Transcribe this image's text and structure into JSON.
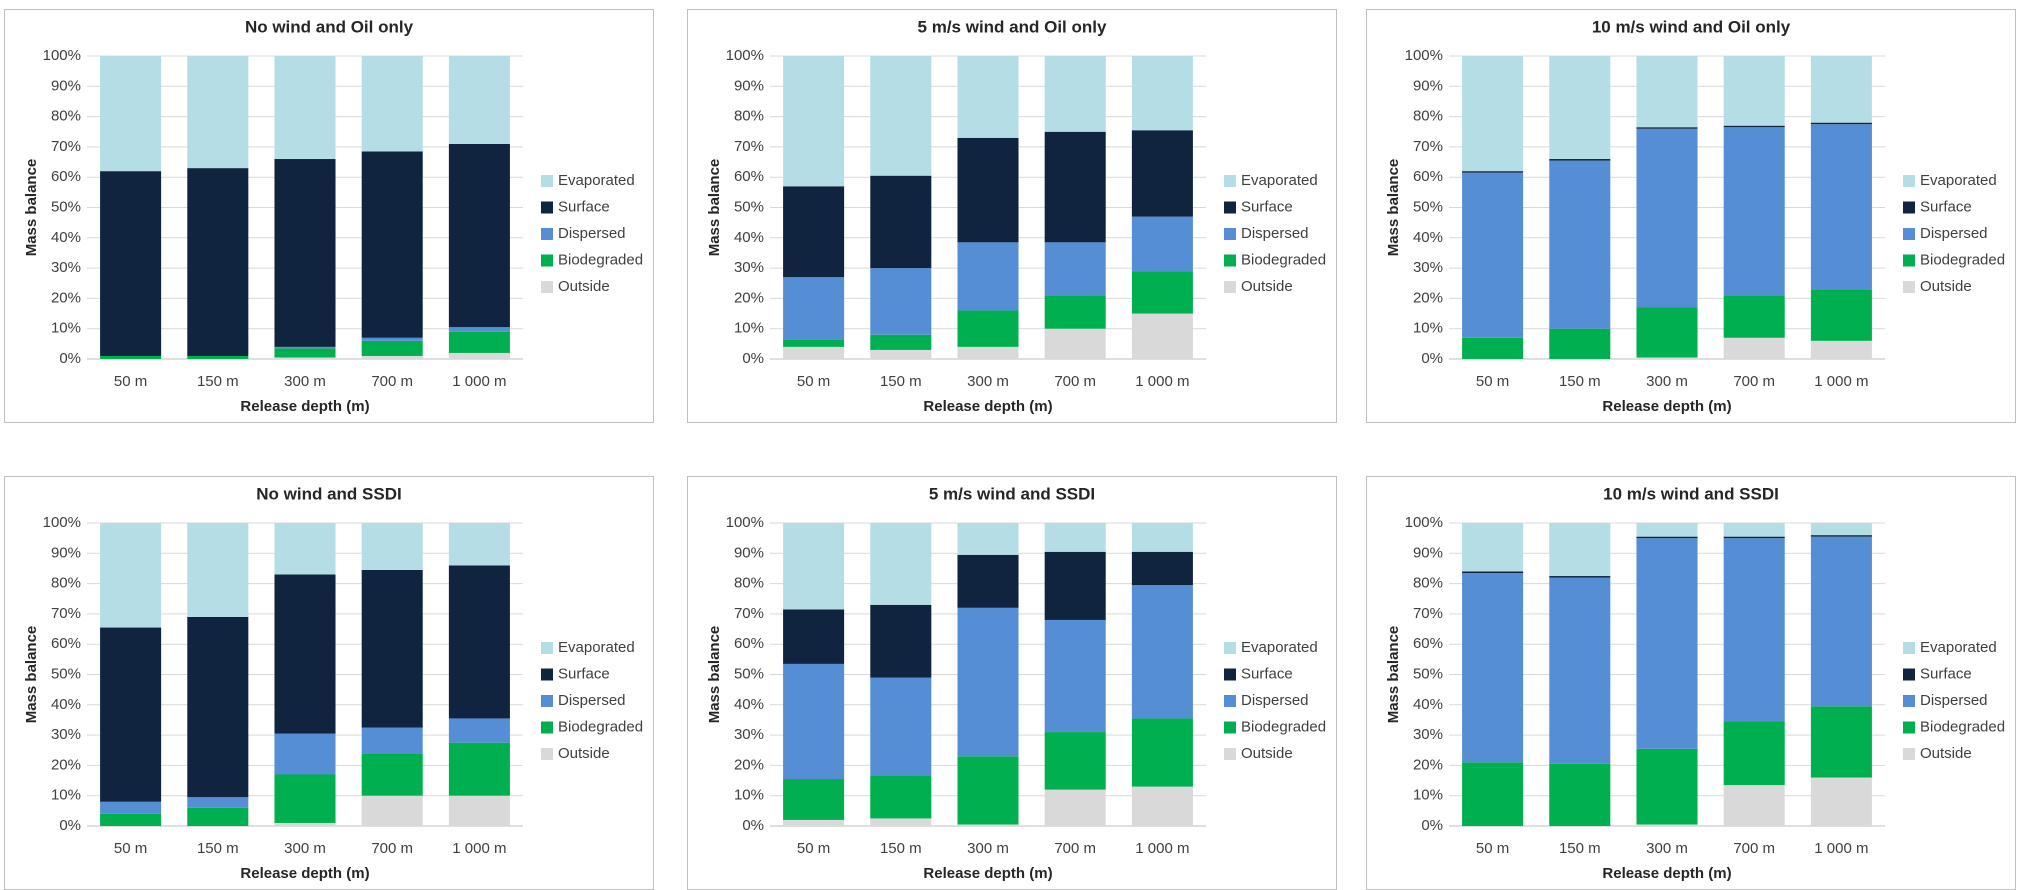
{
  "chart_data": [
    {
      "type": "stacked_bar",
      "title": "No wind and Oil only",
      "x_label": "Release depth (m)",
      "y_label": "Mass balance",
      "categories": [
        "50 m",
        "150 m",
        "300 m",
        "700 m",
        "1 000 m"
      ],
      "series": [
        {
          "name": "Evaporated",
          "color": "#b4dde6",
          "values": [
            38,
            37,
            34,
            31.5,
            29
          ]
        },
        {
          "name": "Surface",
          "color": "#10243f",
          "values": [
            61,
            62,
            62,
            61.5,
            60.5
          ]
        },
        {
          "name": "Dispersed",
          "color": "#558ed5",
          "values": [
            0,
            0,
            0.5,
            1,
            1.5
          ]
        },
        {
          "name": "Biodegraded",
          "color": "#00b050",
          "values": [
            1,
            1,
            3,
            5,
            7
          ]
        },
        {
          "name": "Outside",
          "color": "#d9d9d9",
          "values": [
            0,
            0,
            0.5,
            1,
            2
          ]
        }
      ],
      "ylim": [
        0,
        100
      ],
      "yticks": [
        {
          "value": 0,
          "label": "0%"
        },
        {
          "value": 10,
          "label": "10%"
        },
        {
          "value": 20,
          "label": "20%"
        },
        {
          "value": 30,
          "label": "30%"
        },
        {
          "value": 40,
          "label": "40%"
        },
        {
          "value": 50,
          "label": "50%"
        },
        {
          "value": 60,
          "label": "60%"
        },
        {
          "value": 70,
          "label": "70%"
        },
        {
          "value": 80,
          "label": "80%"
        },
        {
          "value": 90,
          "label": "90%"
        },
        {
          "value": 100,
          "label": "100%"
        }
      ],
      "grid": true,
      "legend": "right"
    },
    {
      "type": "stacked_bar",
      "title": "5 m/s wind and Oil only",
      "x_label": "Release depth (m)",
      "y_label": "Mass balance",
      "categories": [
        "50 m",
        "150 m",
        "300 m",
        "700 m",
        "1 000 m"
      ],
      "series": [
        {
          "name": "Evaporated",
          "color": "#b4dde6",
          "values": [
            43,
            39.5,
            27,
            25,
            24.5
          ]
        },
        {
          "name": "Surface",
          "color": "#10243f",
          "values": [
            30,
            30.5,
            34.5,
            36.5,
            28.5
          ]
        },
        {
          "name": "Dispersed",
          "color": "#558ed5",
          "values": [
            20.5,
            22,
            22.5,
            17.5,
            18
          ]
        },
        {
          "name": "Biodegraded",
          "color": "#00b050",
          "values": [
            2.5,
            5,
            12,
            11,
            14
          ]
        },
        {
          "name": "Outside",
          "color": "#d9d9d9",
          "values": [
            4,
            3,
            4,
            10,
            15
          ]
        }
      ],
      "ylim": [
        0,
        100
      ],
      "yticks": [
        {
          "value": 0,
          "label": "0%"
        },
        {
          "value": 10,
          "label": "10%"
        },
        {
          "value": 20,
          "label": "20%"
        },
        {
          "value": 30,
          "label": "30%"
        },
        {
          "value": 40,
          "label": "40%"
        },
        {
          "value": 50,
          "label": "50%"
        },
        {
          "value": 60,
          "label": "60%"
        },
        {
          "value": 70,
          "label": "70%"
        },
        {
          "value": 80,
          "label": "80%"
        },
        {
          "value": 90,
          "label": "90%"
        },
        {
          "value": 100,
          "label": "100%"
        }
      ],
      "grid": true,
      "legend": "right"
    },
    {
      "type": "stacked_bar",
      "title": "10 m/s wind and Oil only",
      "x_label": "Release depth (m)",
      "y_label": "Mass balance",
      "categories": [
        "50 m",
        "150 m",
        "300 m",
        "700 m",
        "1 000 m"
      ],
      "series": [
        {
          "name": "Evaporated",
          "color": "#b4dde6",
          "values": [
            38,
            34,
            23.5,
            23,
            22
          ]
        },
        {
          "name": "Surface",
          "color": "#10243f",
          "values": [
            0.5,
            0.5,
            0.5,
            0.5,
            0.5
          ]
        },
        {
          "name": "Dispersed",
          "color": "#558ed5",
          "values": [
            54.5,
            55.5,
            59,
            55.5,
            54.5
          ]
        },
        {
          "name": "Biodegraded",
          "color": "#00b050",
          "values": [
            7,
            10,
            16.5,
            14,
            17
          ]
        },
        {
          "name": "Outside",
          "color": "#d9d9d9",
          "values": [
            0,
            0,
            0.5,
            7,
            6
          ]
        }
      ],
      "ylim": [
        0,
        100
      ],
      "yticks": [
        {
          "value": 0,
          "label": "0%"
        },
        {
          "value": 10,
          "label": "10%"
        },
        {
          "value": 20,
          "label": "20%"
        },
        {
          "value": 30,
          "label": "30%"
        },
        {
          "value": 40,
          "label": "40%"
        },
        {
          "value": 50,
          "label": "50%"
        },
        {
          "value": 60,
          "label": "60%"
        },
        {
          "value": 70,
          "label": "70%"
        },
        {
          "value": 80,
          "label": "80%"
        },
        {
          "value": 90,
          "label": "90%"
        },
        {
          "value": 100,
          "label": "100%"
        }
      ],
      "grid": true,
      "legend": "right"
    },
    {
      "type": "stacked_bar",
      "title": "No wind and SSDI",
      "x_label": "Release depth (m)",
      "y_label": "Mass balance",
      "categories": [
        "50 m",
        "150 m",
        "300 m",
        "700 m",
        "1 000 m"
      ],
      "series": [
        {
          "name": "Evaporated",
          "color": "#b4dde6",
          "values": [
            34.5,
            31,
            17,
            15.5,
            14
          ]
        },
        {
          "name": "Surface",
          "color": "#10243f",
          "values": [
            57.5,
            59.5,
            52.5,
            52,
            50.5
          ]
        },
        {
          "name": "Dispersed",
          "color": "#558ed5",
          "values": [
            4,
            3.5,
            13.5,
            8.5,
            8
          ]
        },
        {
          "name": "Biodegraded",
          "color": "#00b050",
          "values": [
            4,
            6,
            16,
            14,
            17.5
          ]
        },
        {
          "name": "Outside",
          "color": "#d9d9d9",
          "values": [
            0,
            0,
            1,
            10,
            10
          ]
        }
      ],
      "ylim": [
        0,
        100
      ],
      "yticks": [
        {
          "value": 0,
          "label": "0%"
        },
        {
          "value": 10,
          "label": "10%"
        },
        {
          "value": 20,
          "label": "20%"
        },
        {
          "value": 30,
          "label": "30%"
        },
        {
          "value": 40,
          "label": "40%"
        },
        {
          "value": 50,
          "label": "50%"
        },
        {
          "value": 60,
          "label": "60%"
        },
        {
          "value": 70,
          "label": "70%"
        },
        {
          "value": 80,
          "label": "80%"
        },
        {
          "value": 90,
          "label": "90%"
        },
        {
          "value": 100,
          "label": "100%"
        }
      ],
      "grid": true,
      "legend": "right"
    },
    {
      "type": "stacked_bar",
      "title": "5 m/s wind and SSDI",
      "x_label": "Release depth (m)",
      "y_label": "Mass balance",
      "categories": [
        "50 m",
        "150 m",
        "300 m",
        "700 m",
        "1 000 m"
      ],
      "series": [
        {
          "name": "Evaporated",
          "color": "#b4dde6",
          "values": [
            28.5,
            27,
            10.5,
            9.5,
            9.5
          ]
        },
        {
          "name": "Surface",
          "color": "#10243f",
          "values": [
            18,
            24,
            17.5,
            22.5,
            11
          ]
        },
        {
          "name": "Dispersed",
          "color": "#558ed5",
          "values": [
            38,
            32.5,
            49,
            37,
            44
          ]
        },
        {
          "name": "Biodegraded",
          "color": "#00b050",
          "values": [
            13.5,
            14,
            22.5,
            19,
            22.5
          ]
        },
        {
          "name": "Outside",
          "color": "#d9d9d9",
          "values": [
            2,
            2.5,
            0.5,
            12,
            13
          ]
        }
      ],
      "ylim": [
        0,
        100
      ],
      "yticks": [
        {
          "value": 0,
          "label": "0%"
        },
        {
          "value": 10,
          "label": "10%"
        },
        {
          "value": 20,
          "label": "20%"
        },
        {
          "value": 30,
          "label": "30%"
        },
        {
          "value": 40,
          "label": "40%"
        },
        {
          "value": 50,
          "label": "50%"
        },
        {
          "value": 60,
          "label": "60%"
        },
        {
          "value": 70,
          "label": "70%"
        },
        {
          "value": 80,
          "label": "80%"
        },
        {
          "value": 90,
          "label": "90%"
        },
        {
          "value": 100,
          "label": "100%"
        }
      ],
      "grid": true,
      "legend": "right"
    },
    {
      "type": "stacked_bar",
      "title": "10 m/s wind and SSDI",
      "x_label": "Release depth (m)",
      "y_label": "Mass balance",
      "categories": [
        "50 m",
        "150 m",
        "300 m",
        "700 m",
        "1 000 m"
      ],
      "series": [
        {
          "name": "Evaporated",
          "color": "#b4dde6",
          "values": [
            16,
            17.5,
            4.5,
            4.5,
            4
          ]
        },
        {
          "name": "Surface",
          "color": "#10243f",
          "values": [
            0.5,
            0.5,
            0.5,
            0.5,
            0.5
          ]
        },
        {
          "name": "Dispersed",
          "color": "#558ed5",
          "values": [
            62.5,
            61.5,
            69.5,
            60.5,
            56
          ]
        },
        {
          "name": "Biodegraded",
          "color": "#00b050",
          "values": [
            21,
            20.5,
            25,
            21,
            23.5
          ]
        },
        {
          "name": "Outside",
          "color": "#d9d9d9",
          "values": [
            0,
            0,
            0.5,
            13.5,
            16
          ]
        }
      ],
      "ylim": [
        0,
        100
      ],
      "yticks": [
        {
          "value": 0,
          "label": "0%"
        },
        {
          "value": 10,
          "label": "10%"
        },
        {
          "value": 20,
          "label": "20%"
        },
        {
          "value": 30,
          "label": "30%"
        },
        {
          "value": 40,
          "label": "40%"
        },
        {
          "value": 50,
          "label": "50%"
        },
        {
          "value": 60,
          "label": "60%"
        },
        {
          "value": 70,
          "label": "70%"
        },
        {
          "value": 80,
          "label": "80%"
        },
        {
          "value": 90,
          "label": "90%"
        },
        {
          "value": 100,
          "label": "100%"
        }
      ],
      "grid": true,
      "legend": "right"
    }
  ]
}
